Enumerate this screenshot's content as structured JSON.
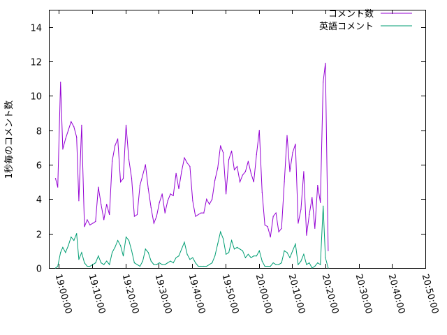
{
  "chart_data": {
    "type": "line",
    "title": "",
    "xlabel": "",
    "ylabel": "1秒毎のコメント数",
    "x_tick_labels": [
      "19:00:00",
      "19:10:00",
      "19:20:00",
      "19:30:00",
      "19:40:00",
      "19:50:00",
      "20:00:00",
      "20:10:00",
      "20:20:00",
      "20:30:00",
      "20:40:00",
      "20:50:00"
    ],
    "xlim": [
      "18:57:00",
      "20:50:00"
    ],
    "ylim": [
      0,
      15
    ],
    "y_ticks": [
      0,
      2,
      4,
      6,
      8,
      10,
      12,
      14
    ],
    "grid": false,
    "legend_position": "top-right",
    "series": [
      {
        "name": "コメント数",
        "color": "#9400d3",
        "points": [
          [
            "18:59:00",
            5.2
          ],
          [
            "18:59:40",
            4.7
          ],
          [
            "19:00:30",
            10.8
          ],
          [
            "19:01:10",
            6.9
          ],
          [
            "19:02:00",
            7.5
          ],
          [
            "19:02:50",
            8.0
          ],
          [
            "19:03:40",
            8.5
          ],
          [
            "19:04:30",
            8.2
          ],
          [
            "19:05:20",
            7.6
          ],
          [
            "19:06:00",
            3.9
          ],
          [
            "19:06:50",
            8.3
          ],
          [
            "19:07:40",
            2.4
          ],
          [
            "19:08:30",
            2.8
          ],
          [
            "19:09:20",
            2.5
          ],
          [
            "19:10:10",
            2.6
          ],
          [
            "19:11:00",
            2.7
          ],
          [
            "19:11:50",
            4.7
          ],
          [
            "19:12:40",
            3.7
          ],
          [
            "19:13:30",
            2.8
          ],
          [
            "19:14:20",
            3.7
          ],
          [
            "19:15:10",
            3.1
          ],
          [
            "19:16:00",
            6.2
          ],
          [
            "19:16:50",
            7.1
          ],
          [
            "19:17:40",
            7.5
          ],
          [
            "19:18:30",
            5.0
          ],
          [
            "19:19:20",
            5.2
          ],
          [
            "19:20:10",
            8.3
          ],
          [
            "19:21:00",
            6.3
          ],
          [
            "19:21:50",
            5.2
          ],
          [
            "19:22:40",
            3.0
          ],
          [
            "19:23:30",
            3.1
          ],
          [
            "19:24:20",
            4.8
          ],
          [
            "19:25:10",
            5.4
          ],
          [
            "19:26:00",
            6.0
          ],
          [
            "19:26:50",
            4.6
          ],
          [
            "19:27:40",
            3.5
          ],
          [
            "19:28:30",
            2.6
          ],
          [
            "19:29:20",
            3.0
          ],
          [
            "19:30:10",
            3.8
          ],
          [
            "19:31:00",
            4.3
          ],
          [
            "19:31:50",
            3.2
          ],
          [
            "19:32:40",
            3.9
          ],
          [
            "19:33:30",
            4.3
          ],
          [
            "19:34:20",
            4.2
          ],
          [
            "19:35:10",
            5.5
          ],
          [
            "19:36:00",
            4.6
          ],
          [
            "19:36:50",
            5.6
          ],
          [
            "19:37:40",
            6.4
          ],
          [
            "19:38:30",
            6.1
          ],
          [
            "19:39:20",
            5.9
          ],
          [
            "19:40:10",
            3.9
          ],
          [
            "19:41:00",
            3.0
          ],
          [
            "19:41:50",
            3.1
          ],
          [
            "19:42:40",
            3.2
          ],
          [
            "19:43:30",
            3.2
          ],
          [
            "19:44:20",
            4.0
          ],
          [
            "19:45:10",
            3.7
          ],
          [
            "19:46:00",
            4.0
          ],
          [
            "19:46:50",
            5.1
          ],
          [
            "19:47:40",
            5.8
          ],
          [
            "19:48:30",
            7.1
          ],
          [
            "19:49:20",
            6.7
          ],
          [
            "19:50:10",
            4.3
          ],
          [
            "19:51:00",
            6.3
          ],
          [
            "19:51:50",
            6.8
          ],
          [
            "19:52:40",
            5.7
          ],
          [
            "19:53:30",
            5.9
          ],
          [
            "19:54:20",
            5.0
          ],
          [
            "19:55:10",
            5.4
          ],
          [
            "19:56:00",
            5.6
          ],
          [
            "19:56:50",
            6.2
          ],
          [
            "19:57:40",
            5.5
          ],
          [
            "19:58:30",
            5.0
          ],
          [
            "19:59:20",
            6.6
          ],
          [
            "20:00:10",
            8.0
          ],
          [
            "20:01:00",
            4.4
          ],
          [
            "20:01:50",
            2.5
          ],
          [
            "20:02:40",
            2.4
          ],
          [
            "20:03:30",
            1.8
          ],
          [
            "20:04:20",
            3.0
          ],
          [
            "20:05:10",
            3.2
          ],
          [
            "20:06:00",
            2.1
          ],
          [
            "20:06:50",
            2.3
          ],
          [
            "20:07:40",
            5.0
          ],
          [
            "20:08:30",
            7.7
          ],
          [
            "20:09:20",
            5.6
          ],
          [
            "20:10:10",
            6.7
          ],
          [
            "20:11:00",
            7.2
          ],
          [
            "20:11:50",
            2.6
          ],
          [
            "20:12:40",
            3.4
          ],
          [
            "20:13:30",
            5.6
          ],
          [
            "20:14:20",
            1.9
          ],
          [
            "20:15:10",
            3.1
          ],
          [
            "20:16:00",
            4.1
          ],
          [
            "20:16:50",
            2.3
          ],
          [
            "20:17:40",
            4.8
          ],
          [
            "20:18:30",
            3.8
          ],
          [
            "20:19:20",
            10.8
          ],
          [
            "20:20:00",
            11.9
          ],
          [
            "20:20:50",
            1.0
          ]
        ]
      },
      {
        "name": "英語コメント",
        "color": "#009e73",
        "points": [
          [
            "18:59:00",
            0.0
          ],
          [
            "18:59:40",
            0.1
          ],
          [
            "19:00:30",
            0.9
          ],
          [
            "19:01:10",
            1.2
          ],
          [
            "19:02:00",
            0.9
          ],
          [
            "19:02:50",
            1.3
          ],
          [
            "19:03:40",
            1.8
          ],
          [
            "19:04:30",
            1.6
          ],
          [
            "19:05:20",
            2.0
          ],
          [
            "19:06:00",
            0.5
          ],
          [
            "19:06:50",
            0.9
          ],
          [
            "19:07:40",
            0.3
          ],
          [
            "19:08:30",
            0.1
          ],
          [
            "19:09:20",
            0.1
          ],
          [
            "19:10:10",
            0.2
          ],
          [
            "19:11:00",
            0.3
          ],
          [
            "19:11:50",
            0.7
          ],
          [
            "19:12:40",
            0.3
          ],
          [
            "19:13:30",
            0.2
          ],
          [
            "19:14:20",
            0.4
          ],
          [
            "19:15:10",
            0.2
          ],
          [
            "19:16:00",
            0.9
          ],
          [
            "19:16:50",
            1.2
          ],
          [
            "19:17:40",
            1.6
          ],
          [
            "19:18:30",
            1.3
          ],
          [
            "19:19:20",
            0.7
          ],
          [
            "19:20:10",
            1.8
          ],
          [
            "19:21:00",
            1.6
          ],
          [
            "19:21:50",
            1.0
          ],
          [
            "19:22:40",
            0.3
          ],
          [
            "19:23:30",
            0.2
          ],
          [
            "19:24:20",
            0.1
          ],
          [
            "19:25:10",
            0.4
          ],
          [
            "19:26:00",
            1.1
          ],
          [
            "19:26:50",
            0.9
          ],
          [
            "19:27:40",
            0.4
          ],
          [
            "19:28:30",
            0.2
          ],
          [
            "19:29:20",
            0.2
          ],
          [
            "19:30:10",
            0.3
          ],
          [
            "19:31:00",
            0.2
          ],
          [
            "19:31:50",
            0.2
          ],
          [
            "19:32:40",
            0.3
          ],
          [
            "19:33:30",
            0.4
          ],
          [
            "19:34:20",
            0.3
          ],
          [
            "19:35:10",
            0.6
          ],
          [
            "19:36:00",
            0.7
          ],
          [
            "19:36:50",
            1.1
          ],
          [
            "19:37:40",
            1.5
          ],
          [
            "19:38:30",
            0.8
          ],
          [
            "19:39:20",
            0.5
          ],
          [
            "19:40:10",
            0.6
          ],
          [
            "19:41:00",
            0.3
          ],
          [
            "19:41:50",
            0.1
          ],
          [
            "19:42:40",
            0.1
          ],
          [
            "19:43:30",
            0.1
          ],
          [
            "19:44:20",
            0.1
          ],
          [
            "19:45:10",
            0.2
          ],
          [
            "19:46:00",
            0.3
          ],
          [
            "19:46:50",
            0.7
          ],
          [
            "19:47:40",
            1.4
          ],
          [
            "19:48:30",
            2.1
          ],
          [
            "19:49:20",
            1.7
          ],
          [
            "19:50:10",
            0.8
          ],
          [
            "19:51:00",
            0.9
          ],
          [
            "19:51:50",
            1.6
          ],
          [
            "19:52:40",
            1.1
          ],
          [
            "19:53:30",
            1.2
          ],
          [
            "19:54:20",
            1.1
          ],
          [
            "19:55:10",
            1.0
          ],
          [
            "19:56:00",
            0.6
          ],
          [
            "19:56:50",
            0.8
          ],
          [
            "19:57:40",
            0.6
          ],
          [
            "19:58:30",
            0.7
          ],
          [
            "19:59:20",
            0.7
          ],
          [
            "20:00:10",
            1.0
          ],
          [
            "20:01:00",
            0.4
          ],
          [
            "20:01:50",
            0.1
          ],
          [
            "20:02:40",
            0.1
          ],
          [
            "20:03:30",
            0.1
          ],
          [
            "20:04:20",
            0.3
          ],
          [
            "20:05:10",
            0.2
          ],
          [
            "20:06:00",
            0.2
          ],
          [
            "20:06:50",
            0.3
          ],
          [
            "20:07:40",
            1.0
          ],
          [
            "20:08:30",
            0.9
          ],
          [
            "20:09:20",
            0.6
          ],
          [
            "20:10:10",
            1.0
          ],
          [
            "20:11:00",
            1.4
          ],
          [
            "20:11:50",
            0.2
          ],
          [
            "20:12:40",
            0.4
          ],
          [
            "20:13:30",
            0.8
          ],
          [
            "20:14:20",
            0.2
          ],
          [
            "20:15:10",
            0.3
          ],
          [
            "20:16:00",
            0.0
          ],
          [
            "20:16:50",
            0.1
          ],
          [
            "20:17:40",
            0.3
          ],
          [
            "20:18:30",
            0.2
          ],
          [
            "20:19:20",
            3.6
          ],
          [
            "20:20:00",
            0.6
          ],
          [
            "20:20:50",
            0.0
          ]
        ]
      }
    ]
  }
}
